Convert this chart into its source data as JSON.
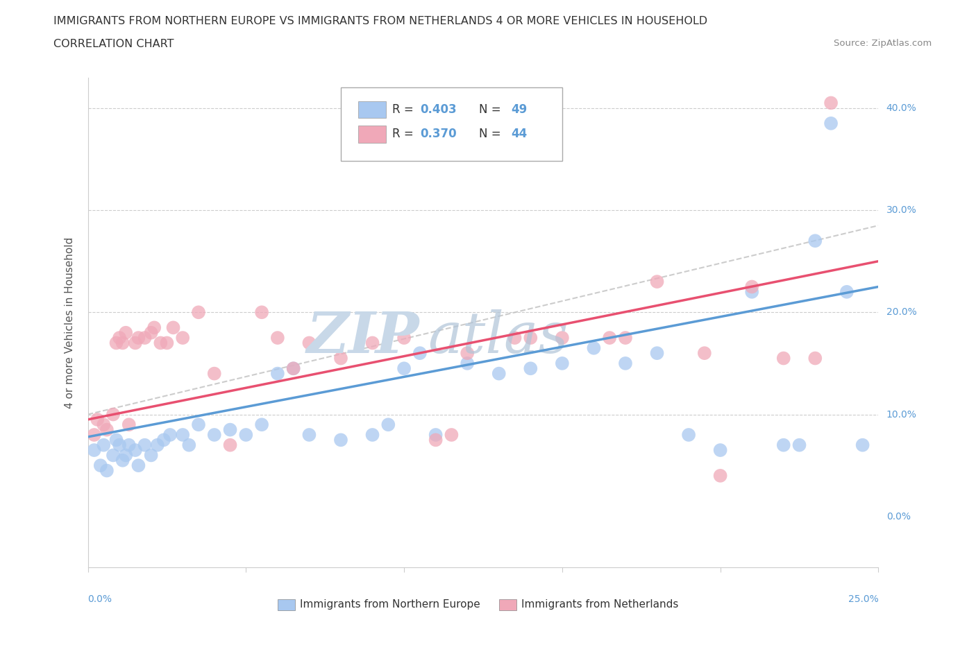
{
  "title_line1": "IMMIGRANTS FROM NORTHERN EUROPE VS IMMIGRANTS FROM NETHERLANDS 4 OR MORE VEHICLES IN HOUSEHOLD",
  "title_line2": "CORRELATION CHART",
  "source": "Source: ZipAtlas.com",
  "ylabel_label": "4 or more Vehicles in Household",
  "xlim": [
    0.0,
    25.0
  ],
  "ylim": [
    -5.0,
    43.0
  ],
  "yticks": [
    0.0,
    10.0,
    20.0,
    30.0,
    40.0
  ],
  "xticks": [
    0.0,
    5.0,
    10.0,
    15.0,
    20.0,
    25.0
  ],
  "blue_color": "#A8C8F0",
  "pink_color": "#F0A8B8",
  "blue_line_color": "#5B9BD5",
  "pink_line_color": "#E85070",
  "dashed_line_color": "#C0C0C0",
  "legend_R1": "0.403",
  "legend_N1": "49",
  "legend_R2": "0.370",
  "legend_N2": "44",
  "blue_scatter_x": [
    0.2,
    0.4,
    0.5,
    0.6,
    0.8,
    0.9,
    1.0,
    1.1,
    1.2,
    1.3,
    1.5,
    1.6,
    1.8,
    2.0,
    2.2,
    2.4,
    2.6,
    3.0,
    3.2,
    3.5,
    4.0,
    4.5,
    5.0,
    5.5,
    6.0,
    6.5,
    7.0,
    8.0,
    9.0,
    9.5,
    10.0,
    10.5,
    11.0,
    12.0,
    13.0,
    14.0,
    15.0,
    16.0,
    17.0,
    18.0,
    19.0,
    20.0,
    21.0,
    22.0,
    22.5,
    23.0,
    23.5,
    24.0,
    24.5
  ],
  "blue_scatter_y": [
    6.5,
    5.0,
    7.0,
    4.5,
    6.0,
    7.5,
    7.0,
    5.5,
    6.0,
    7.0,
    6.5,
    5.0,
    7.0,
    6.0,
    7.0,
    7.5,
    8.0,
    8.0,
    7.0,
    9.0,
    8.0,
    8.5,
    8.0,
    9.0,
    14.0,
    14.5,
    8.0,
    7.5,
    8.0,
    9.0,
    14.5,
    16.0,
    8.0,
    15.0,
    14.0,
    14.5,
    15.0,
    16.5,
    15.0,
    16.0,
    8.0,
    6.5,
    22.0,
    7.0,
    7.0,
    27.0,
    38.5,
    22.0,
    7.0
  ],
  "pink_scatter_x": [
    0.2,
    0.3,
    0.5,
    0.6,
    0.8,
    0.9,
    1.0,
    1.1,
    1.2,
    1.3,
    1.5,
    1.6,
    1.8,
    2.0,
    2.1,
    2.3,
    2.5,
    2.7,
    3.0,
    3.5,
    4.5,
    5.5,
    6.0,
    7.0,
    8.0,
    9.0,
    10.0,
    11.0,
    12.0,
    13.5,
    14.0,
    15.0,
    16.5,
    17.0,
    18.0,
    19.5,
    20.0,
    21.0,
    22.0,
    23.0,
    23.5,
    11.5,
    4.0,
    6.5
  ],
  "pink_scatter_y": [
    8.0,
    9.5,
    9.0,
    8.5,
    10.0,
    17.0,
    17.5,
    17.0,
    18.0,
    9.0,
    17.0,
    17.5,
    17.5,
    18.0,
    18.5,
    17.0,
    17.0,
    18.5,
    17.5,
    20.0,
    7.0,
    20.0,
    17.5,
    17.0,
    15.5,
    17.0,
    17.5,
    7.5,
    16.0,
    17.5,
    17.5,
    17.5,
    17.5,
    17.5,
    23.0,
    16.0,
    4.0,
    22.5,
    15.5,
    15.5,
    40.5,
    8.0,
    14.0,
    14.5
  ],
  "blue_regress_x0": 0,
  "blue_regress_y0": 7.8,
  "blue_regress_x1": 25,
  "blue_regress_y1": 22.5,
  "pink_regress_x0": 0,
  "pink_regress_y0": 9.5,
  "pink_regress_x1": 25,
  "pink_regress_y1": 25.0,
  "dash_regress_x0": 0,
  "dash_regress_y0": 10.0,
  "dash_regress_x1": 25,
  "dash_regress_y1": 28.5,
  "watermark_zip_color": "#C8D8E8",
  "watermark_atlas_color": "#B0C4D8"
}
